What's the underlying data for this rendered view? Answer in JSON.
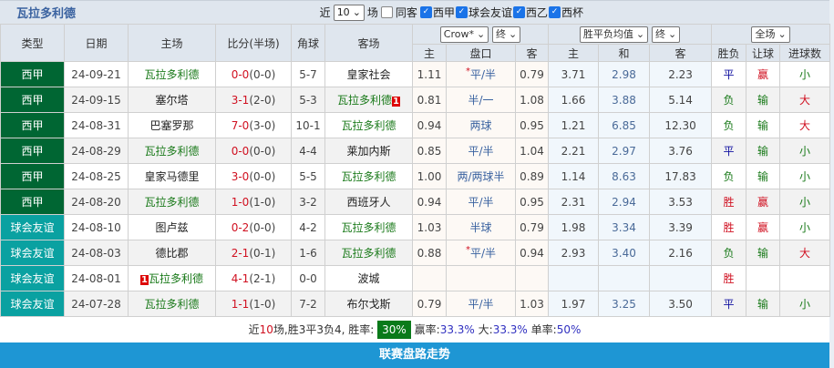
{
  "title": "瓦拉多利德",
  "filters": {
    "recent_prefix": "近",
    "recent_count": "10",
    "recent_suffix": "场",
    "same_home": "同客",
    "leagues": [
      {
        "label": "西甲",
        "checked": true
      },
      {
        "label": "球会友谊",
        "checked": true
      },
      {
        "label": "西乙",
        "checked": true
      },
      {
        "label": "西杯",
        "checked": true
      }
    ]
  },
  "headers": {
    "type": "类型",
    "date": "日期",
    "home": "主场",
    "score": "比分(半场)",
    "corner": "角球",
    "away": "客场",
    "ah_company": "Crow*",
    "ah_time": "终",
    "eu_type": "胜平负均值",
    "eu_time": "终",
    "scope": "全场",
    "ah_cols": [
      "主",
      "盘口",
      "客"
    ],
    "eu_cols": [
      "主",
      "和",
      "客"
    ],
    "res_cols": [
      "胜负",
      "让球",
      "进球数"
    ]
  },
  "team": "瓦拉多利德",
  "rows": [
    {
      "type": "西甲",
      "league": true,
      "date": "24-09-21",
      "home": "瓦拉多利德",
      "score": "0-0",
      "half": "(0-0)",
      "corner": "5-7",
      "away": "皇家社会",
      "ah": [
        "1.11",
        "平/半",
        "0.79"
      ],
      "ah_star": true,
      "eu": [
        "3.71",
        "2.98",
        "2.23"
      ],
      "res": [
        "平",
        "赢",
        "小"
      ]
    },
    {
      "type": "西甲",
      "league": true,
      "date": "24-09-15",
      "home": "塞尔塔",
      "score": "3-1",
      "half": "(2-0)",
      "corner": "5-3",
      "away": "瓦拉多利德",
      "away_badge": "1",
      "ah": [
        "0.81",
        "半/一",
        "1.08"
      ],
      "eu": [
        "1.66",
        "3.88",
        "5.14"
      ],
      "res": [
        "负",
        "输",
        "大"
      ]
    },
    {
      "type": "西甲",
      "league": true,
      "date": "24-08-31",
      "home": "巴塞罗那",
      "score": "7-0",
      "half": "(3-0)",
      "corner": "10-1",
      "away": "瓦拉多利德",
      "ah": [
        "0.94",
        "两球",
        "0.95"
      ],
      "eu": [
        "1.21",
        "6.85",
        "12.30"
      ],
      "res": [
        "负",
        "输",
        "大"
      ]
    },
    {
      "type": "西甲",
      "league": true,
      "date": "24-08-29",
      "home": "瓦拉多利德",
      "score": "0-0",
      "half": "(0-0)",
      "corner": "4-4",
      "away": "莱加内斯",
      "ah": [
        "0.85",
        "平/半",
        "1.04"
      ],
      "eu": [
        "2.21",
        "2.97",
        "3.76"
      ],
      "res": [
        "平",
        "输",
        "小"
      ]
    },
    {
      "type": "西甲",
      "league": true,
      "date": "24-08-25",
      "home": "皇家马德里",
      "score": "3-0",
      "half": "(0-0)",
      "corner": "5-5",
      "away": "瓦拉多利德",
      "ah": [
        "1.00",
        "两/两球半",
        "0.89"
      ],
      "eu": [
        "1.14",
        "8.63",
        "17.83"
      ],
      "res": [
        "负",
        "输",
        "小"
      ]
    },
    {
      "type": "西甲",
      "league": true,
      "date": "24-08-20",
      "home": "瓦拉多利德",
      "score": "1-0",
      "half": "(1-0)",
      "corner": "3-2",
      "away": "西班牙人",
      "ah": [
        "0.94",
        "平/半",
        "0.95"
      ],
      "eu": [
        "2.31",
        "2.94",
        "3.53"
      ],
      "res": [
        "胜",
        "赢",
        "小"
      ]
    },
    {
      "type": "球会友谊",
      "league": false,
      "date": "24-08-10",
      "home": "图卢兹",
      "score": "0-2",
      "half": "(0-0)",
      "corner": "4-2",
      "away": "瓦拉多利德",
      "ah": [
        "1.03",
        "半球",
        "0.79"
      ],
      "eu": [
        "1.98",
        "3.34",
        "3.39"
      ],
      "res": [
        "胜",
        "赢",
        "小"
      ]
    },
    {
      "type": "球会友谊",
      "league": false,
      "date": "24-08-03",
      "home": "德比郡",
      "score": "2-1",
      "half": "(0-1)",
      "corner": "1-6",
      "away": "瓦拉多利德",
      "ah": [
        "0.88",
        "平/半",
        "0.94"
      ],
      "ah_star": true,
      "eu": [
        "2.93",
        "3.40",
        "2.16"
      ],
      "res": [
        "负",
        "输",
        "大"
      ]
    },
    {
      "type": "球会友谊",
      "league": false,
      "date": "24-08-01",
      "home": "瓦拉多利德",
      "home_badge": "1",
      "score": "4-1",
      "half": "(2-1)",
      "corner": "0-0",
      "away": "波城",
      "ah": [
        "",
        "",
        ""
      ],
      "eu": [
        "",
        "",
        ""
      ],
      "res": [
        "胜",
        "",
        ""
      ]
    },
    {
      "type": "球会友谊",
      "league": false,
      "date": "24-07-28",
      "home": "瓦拉多利德",
      "score": "1-1",
      "half": "(1-0)",
      "corner": "7-2",
      "away": "布尔戈斯",
      "ah": [
        "0.79",
        "平/半",
        "1.03"
      ],
      "eu": [
        "1.97",
        "3.25",
        "3.50"
      ],
      "res": [
        "平",
        "输",
        "小"
      ]
    }
  ],
  "summary": {
    "p1": "近",
    "n": "10",
    "p2": "场,胜3平3负4, 胜率:",
    "win_rate": "30%",
    "ying_label": "赢率:",
    "ying": "33.3%",
    "da_label": "大:",
    "da": "33.3%",
    "dan_label": "单率:",
    "dan": "50%"
  },
  "button": "联赛盘路走势",
  "colors": {
    "league": "#006633",
    "friendly": "#0aa1a1",
    "button": "#1e96d4"
  }
}
